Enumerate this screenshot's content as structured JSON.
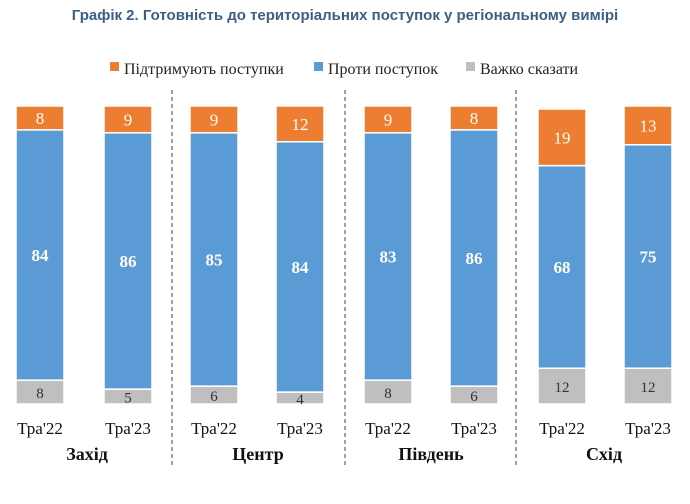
{
  "title": "Графік 2. Готовність до територіальних поступок у регіональному вимірі",
  "colors": {
    "support": "#ed7d31",
    "against": "#5b9bd5",
    "hard": "#bfbfbf"
  },
  "chart_data": {
    "type": "bar",
    "stacked": true,
    "legend_position": "top",
    "grid": false,
    "ylim": [
      0,
      100
    ],
    "groups": [
      "Захід",
      "Центр",
      "Південь",
      "Схід"
    ],
    "categories": [
      "Тра'22",
      "Тра'23",
      "Тра'22",
      "Тра'23",
      "Тра'22",
      "Тра'23",
      "Тра'22",
      "Тра'23"
    ],
    "category_group": [
      0,
      0,
      1,
      1,
      2,
      2,
      3,
      3
    ],
    "series": [
      {
        "name": "Важко сказати",
        "color": "#bfbfbf",
        "values": [
          8,
          5,
          6,
          4,
          8,
          6,
          12,
          12
        ]
      },
      {
        "name": "Проти поступок",
        "color": "#5b9bd5",
        "values": [
          84,
          86,
          85,
          84,
          83,
          86,
          68,
          75
        ]
      },
      {
        "name": "Підтримують поступки",
        "color": "#ed7d31",
        "values": [
          8,
          9,
          9,
          12,
          9,
          8,
          19,
          13
        ]
      }
    ],
    "legend_order": [
      "Підтримують поступки",
      "Проти поступок",
      "Важко сказати"
    ]
  }
}
